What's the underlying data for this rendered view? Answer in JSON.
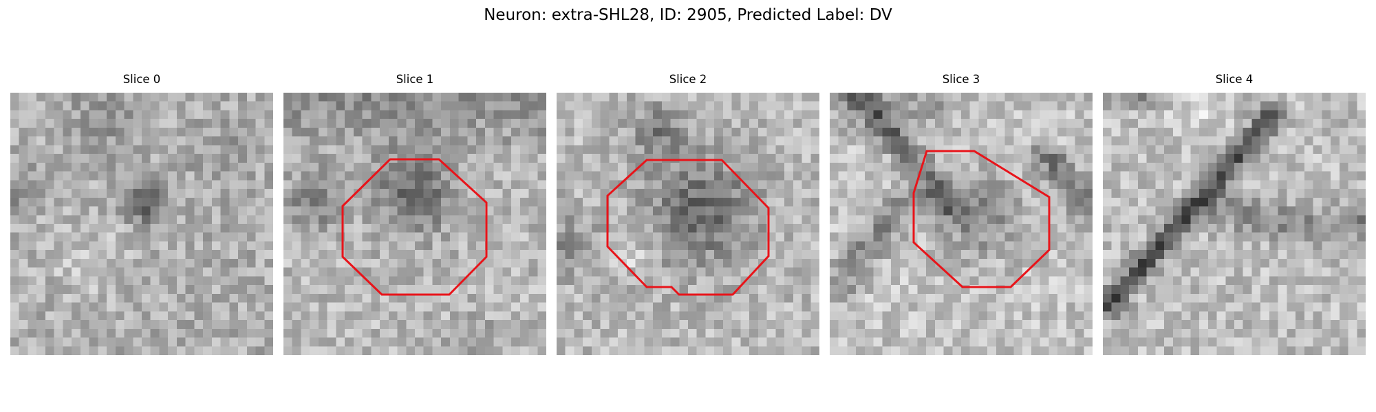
{
  "figure": {
    "title": "Neuron: extra-SHL28, ID: 2905, Predicted Label: DV"
  },
  "slices": [
    {
      "label": "Slice 0",
      "has_roi": false,
      "texture": "speckle-dark-blob"
    },
    {
      "label": "Slice 1",
      "has_roi": true,
      "texture": "dark-cell-upper"
    },
    {
      "label": "Slice 2",
      "has_roi": true,
      "texture": "dark-cell-center"
    },
    {
      "label": "Slice 3",
      "has_roi": true,
      "texture": "dark-x-membranes"
    },
    {
      "label": "Slice 4",
      "has_roi": false,
      "texture": "diagonal-dark-line"
    }
  ],
  "roi_color": "#e8141a",
  "colormap": "grayscale"
}
